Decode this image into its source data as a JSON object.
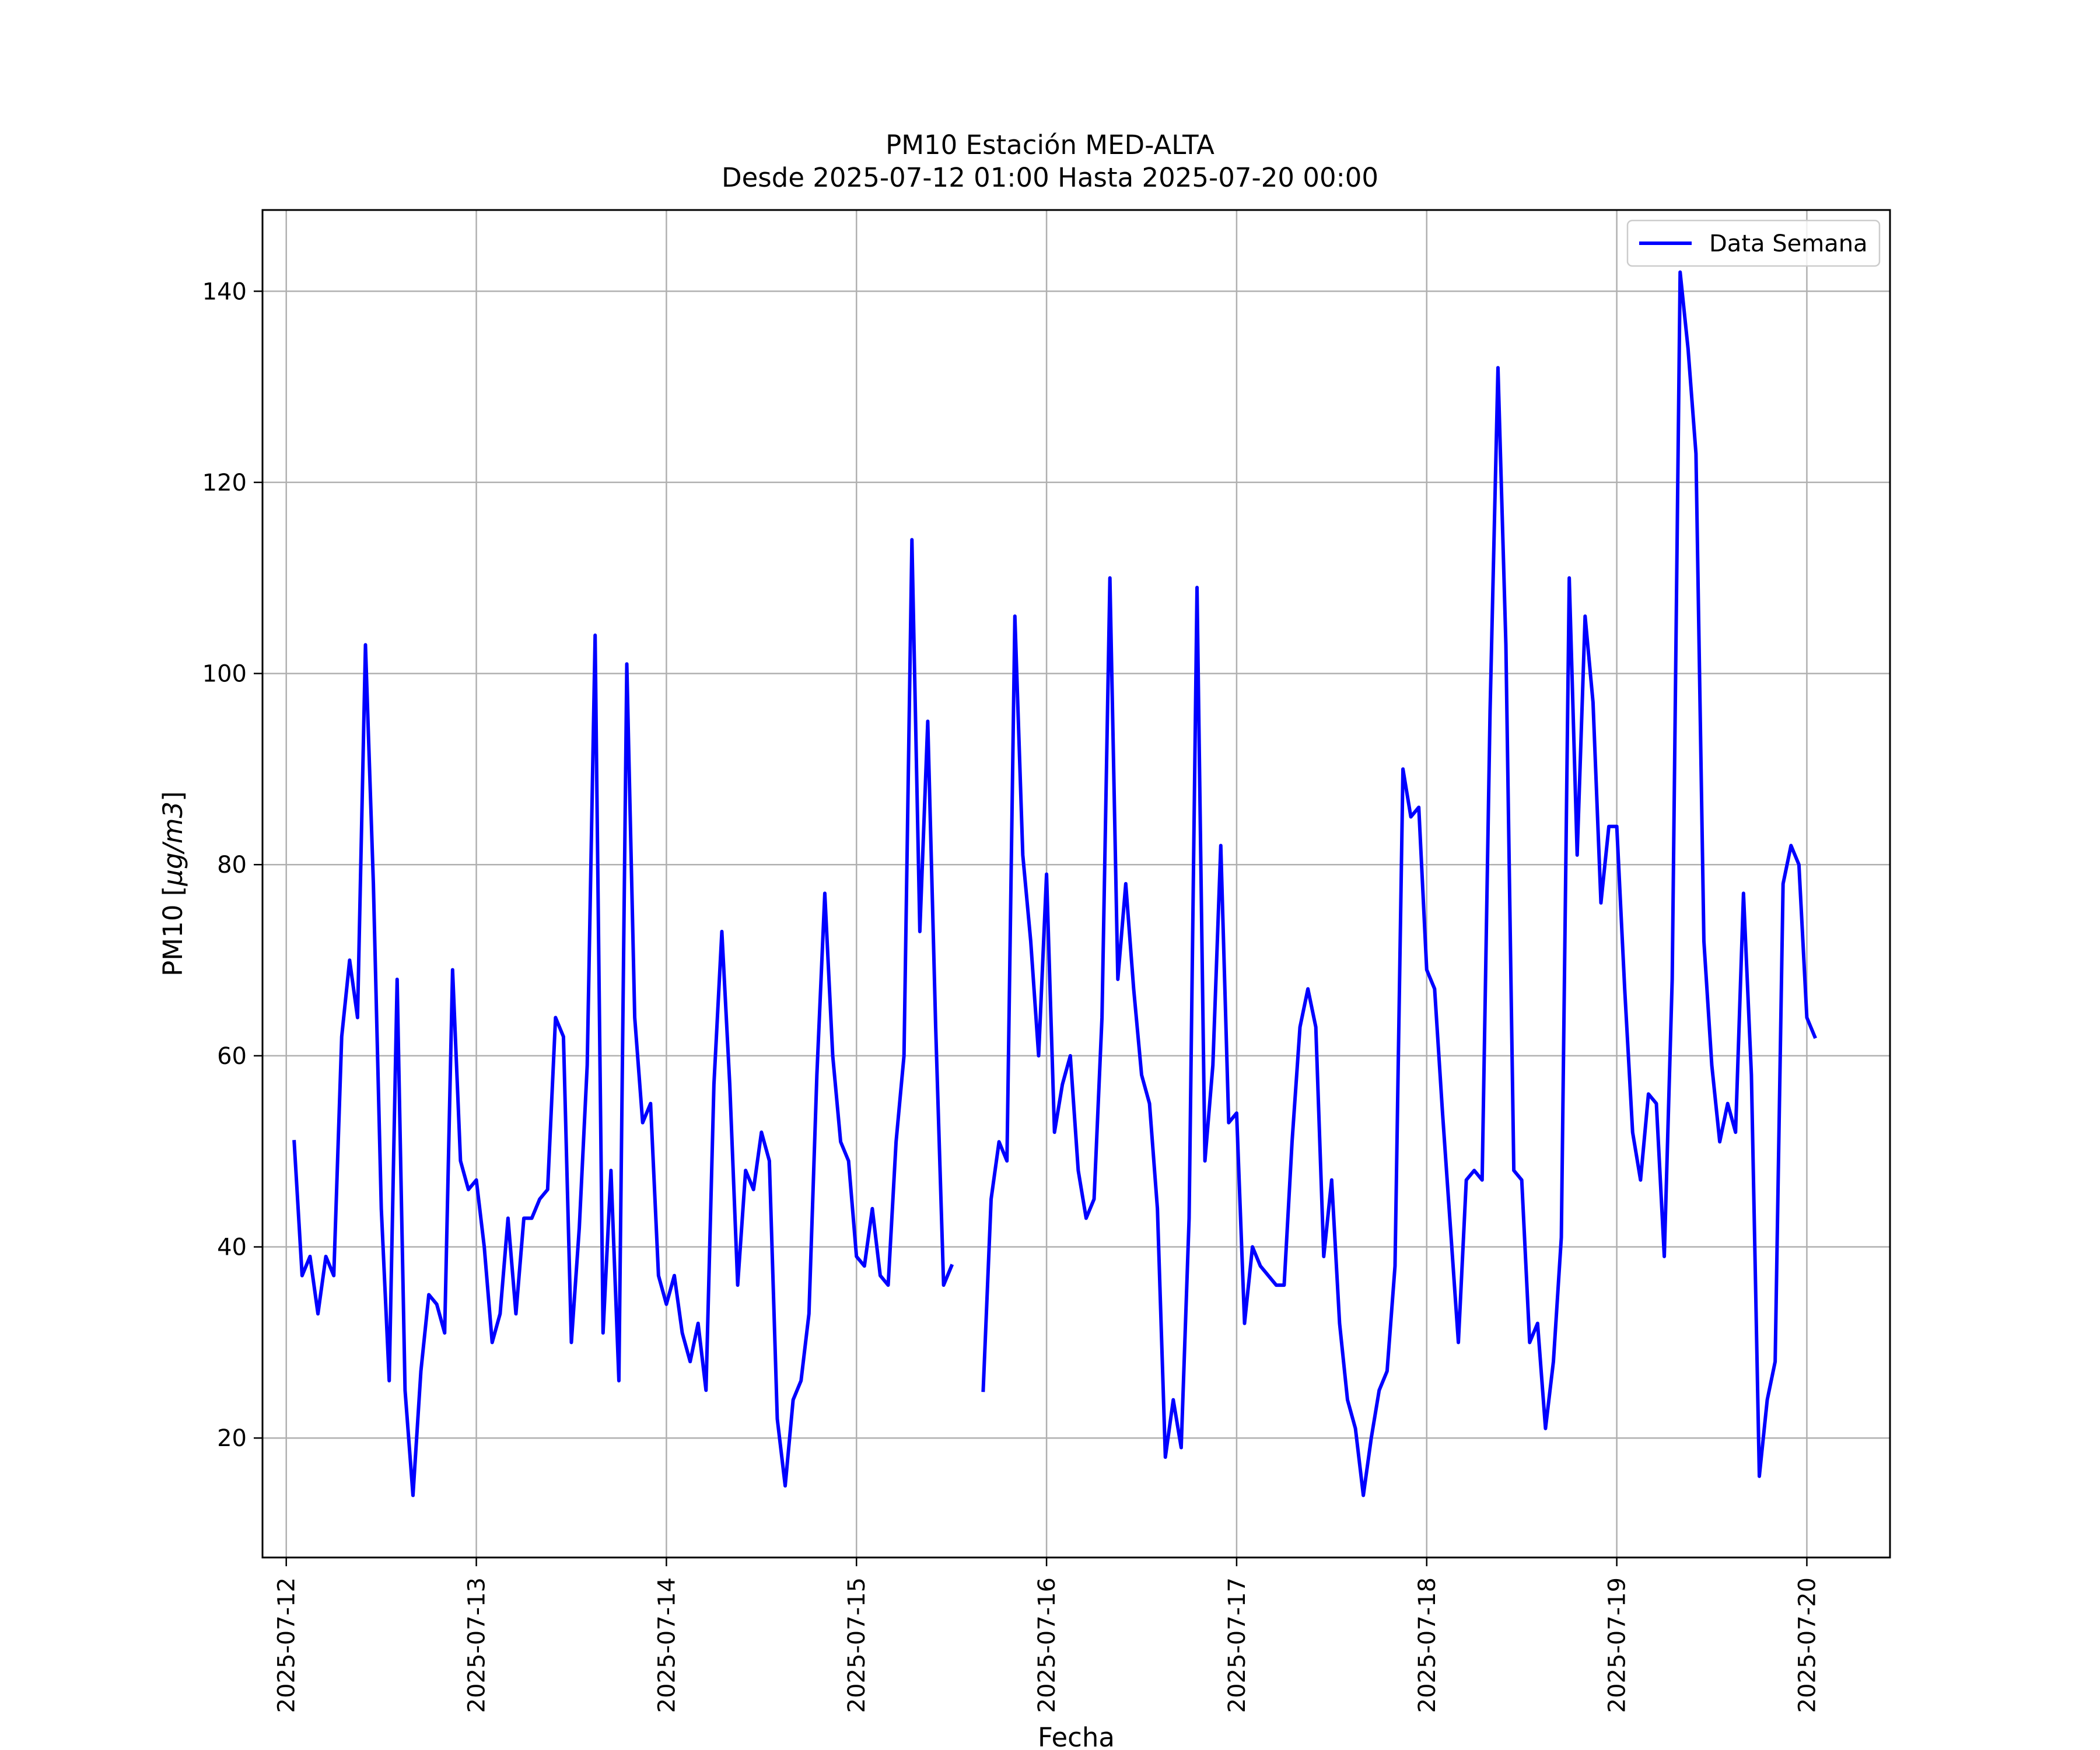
{
  "chart_data": {
    "type": "line",
    "title": "PM10 Estación MED-ALTA",
    "subtitle": "Desde 2025-07-12 01:00 Hasta 2025-07-20 00:00",
    "xlabel": "Fecha",
    "ylabel_text": "PM10 [",
    "ylabel_unit": "μg/m3",
    "ylabel_close": "]",
    "xlim": [
      "2025-07-11 21:00",
      "2025-07-20 10:30"
    ],
    "ylim": [
      7.5,
      148.5
    ],
    "xticks": [
      "2025-07-12",
      "2025-07-13",
      "2025-07-14",
      "2025-07-15",
      "2025-07-16",
      "2025-07-17",
      "2025-07-18",
      "2025-07-19",
      "2025-07-20"
    ],
    "yticks": [
      20,
      40,
      60,
      80,
      100,
      120,
      140
    ],
    "grid": true,
    "legend_position": "top-right",
    "series": [
      {
        "name": "Data Semana",
        "color": "#0000ff",
        "start": "2025-07-12 01:00",
        "step_hours": 1,
        "values": [
          51,
          37,
          39,
          33,
          39,
          37,
          62,
          70,
          64,
          103,
          78,
          44,
          26,
          68,
          25,
          14,
          27,
          35,
          34,
          31,
          69,
          49,
          46,
          47,
          40,
          30,
          33,
          43,
          33,
          43,
          43,
          45,
          46,
          64,
          62,
          30,
          42,
          59,
          104,
          31,
          48,
          26,
          101,
          64,
          53,
          55,
          37,
          34,
          37,
          31,
          28,
          32,
          25,
          57,
          73,
          57,
          36,
          48,
          46,
          52,
          49,
          22,
          15,
          24,
          26,
          33,
          58,
          77,
          60,
          51,
          49,
          39,
          38,
          44,
          37,
          36,
          51,
          60,
          114,
          73,
          95,
          63,
          36,
          38,
          null,
          null,
          null,
          25,
          45,
          51,
          49,
          106,
          81,
          72,
          60,
          79,
          52,
          57,
          60,
          48,
          43,
          45,
          64,
          110,
          68,
          78,
          67,
          58,
          55,
          44,
          18,
          24,
          19,
          43,
          109,
          49,
          59,
          82,
          53,
          54,
          32,
          40,
          38,
          37,
          36,
          36,
          51,
          63,
          67,
          63,
          39,
          47,
          32,
          24,
          21,
          14,
          20,
          25,
          27,
          38,
          90,
          85,
          86,
          69,
          67,
          54,
          42,
          30,
          47,
          48,
          47,
          96,
          132,
          103,
          48,
          47,
          30,
          32,
          21,
          28,
          41,
          110,
          81,
          106,
          97,
          76,
          84,
          84,
          67,
          52,
          47,
          56,
          55,
          39,
          68,
          142,
          134,
          123,
          72,
          59,
          51,
          55,
          52,
          77,
          58,
          16,
          24,
          28,
          78,
          82,
          80,
          64,
          62
        ]
      }
    ]
  }
}
